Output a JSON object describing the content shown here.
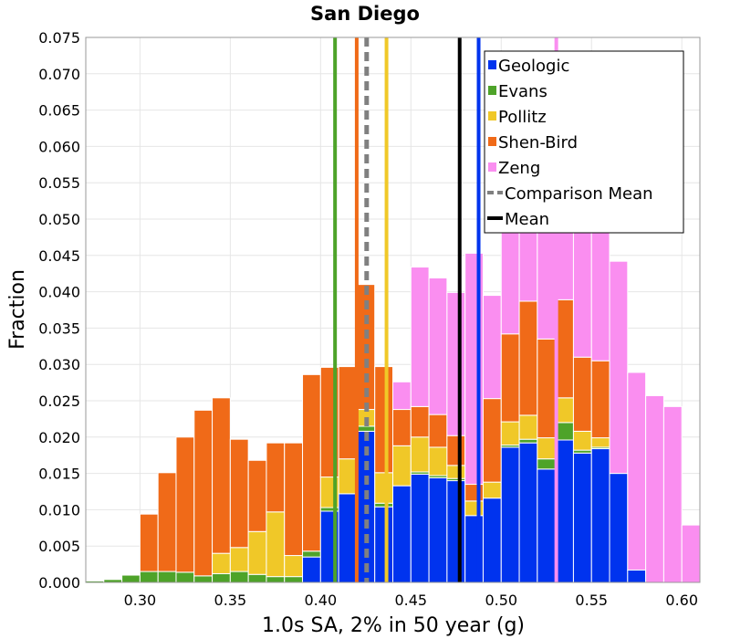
{
  "chart_data": {
    "type": "bar",
    "title": "San Diego",
    "xlabel": "1.0s SA, 2% in 50 year (g)",
    "ylabel": "Fraction",
    "xlim": [
      0.27,
      0.61
    ],
    "ylim": [
      0,
      0.075
    ],
    "xticks": [
      "0.30",
      "0.35",
      "0.40",
      "0.45",
      "0.50",
      "0.55",
      "0.60"
    ],
    "yticks": [
      "0.000",
      "0.005",
      "0.010",
      "0.015",
      "0.020",
      "0.025",
      "0.030",
      "0.035",
      "0.040",
      "0.045",
      "0.050",
      "0.055",
      "0.060",
      "0.065",
      "0.070",
      "0.075"
    ],
    "grid": true,
    "stacked": true,
    "legend_position": "top-right",
    "bin_width": 0.01,
    "bin_centers": [
      0.275,
      0.285,
      0.295,
      0.305,
      0.315,
      0.325,
      0.335,
      0.345,
      0.355,
      0.365,
      0.375,
      0.385,
      0.395,
      0.405,
      0.415,
      0.425,
      0.435,
      0.445,
      0.455,
      0.465,
      0.475,
      0.485,
      0.495,
      0.505,
      0.515,
      0.525,
      0.535,
      0.545,
      0.555,
      0.565,
      0.575,
      0.585,
      0.595,
      0.605
    ],
    "series": [
      {
        "name": "Geologic",
        "color": "#0033ee",
        "values": [
          0,
          0,
          0,
          0,
          0,
          0,
          0,
          0,
          0,
          0,
          0,
          0,
          0.0035,
          0.0098,
          0.0122,
          0.0208,
          0.0104,
          0.0133,
          0.0149,
          0.0144,
          0.014,
          0.0092,
          0.0116,
          0.0186,
          0.0192,
          0.0156,
          0.0196,
          0.0178,
          0.0184,
          0.015,
          0.0017,
          0,
          0,
          0
        ]
      },
      {
        "name": "Evans",
        "color": "#4ea329",
        "values": [
          0.0002,
          0.0004,
          0.001,
          0.0015,
          0.0015,
          0.0014,
          0.0009,
          0.0012,
          0.0015,
          0.0011,
          0.0008,
          0.0008,
          0.0008,
          0.0005,
          0,
          0.0007,
          0.0005,
          0,
          0.0003,
          0.0003,
          0.0003,
          0,
          0,
          0.0003,
          0.0005,
          0.0014,
          0.0024,
          0.0004,
          0.0002,
          0,
          0,
          0,
          0,
          0
        ]
      },
      {
        "name": "Pollitz",
        "color": "#f0c828",
        "values": [
          0,
          0,
          0,
          0,
          0,
          0,
          0,
          0.0028,
          0.0033,
          0.0059,
          0.0089,
          0.0029,
          0,
          0.0042,
          0.0048,
          0.0023,
          0.0042,
          0.0055,
          0.0048,
          0.0039,
          0.0018,
          0.002,
          0.0022,
          0.0032,
          0.0033,
          0.0029,
          0.0034,
          0.0026,
          0.0013,
          0,
          0,
          0,
          0,
          0
        ]
      },
      {
        "name": "Shen-Bird",
        "color": "#f06a18",
        "values": [
          0,
          0,
          0,
          0.0079,
          0.0136,
          0.0186,
          0.0228,
          0.0214,
          0.0149,
          0.0098,
          0.0095,
          0.0155,
          0.0243,
          0.0151,
          0.0127,
          0.0172,
          0.0146,
          0.005,
          0.0042,
          0.0045,
          0.0041,
          0.0023,
          0.0115,
          0.0121,
          0.0157,
          0.0136,
          0.0135,
          0.0102,
          0.0106,
          0,
          0,
          0,
          0,
          0
        ]
      },
      {
        "name": "Zeng",
        "color": "#fa8ef0",
        "values": [
          0,
          0,
          0,
          0,
          0,
          0,
          0,
          0,
          0,
          0,
          0,
          0,
          0,
          0,
          0,
          0,
          0,
          0.0038,
          0.0192,
          0.0188,
          0.0197,
          0.0318,
          0.0142,
          0.0214,
          0.0181,
          0.0177,
          0.0161,
          0.0243,
          0.0199,
          0.0292,
          0.0272,
          0.0257,
          0.0242,
          0.0079
        ]
      }
    ],
    "vertical_lines": [
      {
        "name": "Evans",
        "x": 0.408,
        "color": "#4ea329",
        "style": "solid"
      },
      {
        "name": "Shen-Bird",
        "x": 0.42,
        "color": "#f06a18",
        "style": "solid"
      },
      {
        "name": "Comparison Mean",
        "x": 0.4255,
        "color": "#808080",
        "style": "dashed"
      },
      {
        "name": "Pollitz",
        "x": 0.4365,
        "color": "#f0c828",
        "style": "solid"
      },
      {
        "name": "Mean",
        "x": 0.477,
        "color": "#000000",
        "style": "solid"
      },
      {
        "name": "Geologic",
        "x": 0.4875,
        "color": "#0033ee",
        "style": "solid"
      },
      {
        "name": "Zeng",
        "x": 0.5305,
        "color": "#fa8ef0",
        "style": "solid"
      }
    ],
    "legend": [
      {
        "label": "Geologic",
        "color": "#0033ee",
        "kind": "box"
      },
      {
        "label": "Evans",
        "color": "#4ea329",
        "kind": "box"
      },
      {
        "label": "Pollitz",
        "color": "#f0c828",
        "kind": "box"
      },
      {
        "label": "Shen-Bird",
        "color": "#f06a18",
        "kind": "box"
      },
      {
        "label": "Zeng",
        "color": "#fa8ef0",
        "kind": "box"
      },
      {
        "label": "Comparison Mean",
        "color": "#808080",
        "kind": "dashed-line"
      },
      {
        "label": "Mean",
        "color": "#000000",
        "kind": "line"
      }
    ]
  }
}
